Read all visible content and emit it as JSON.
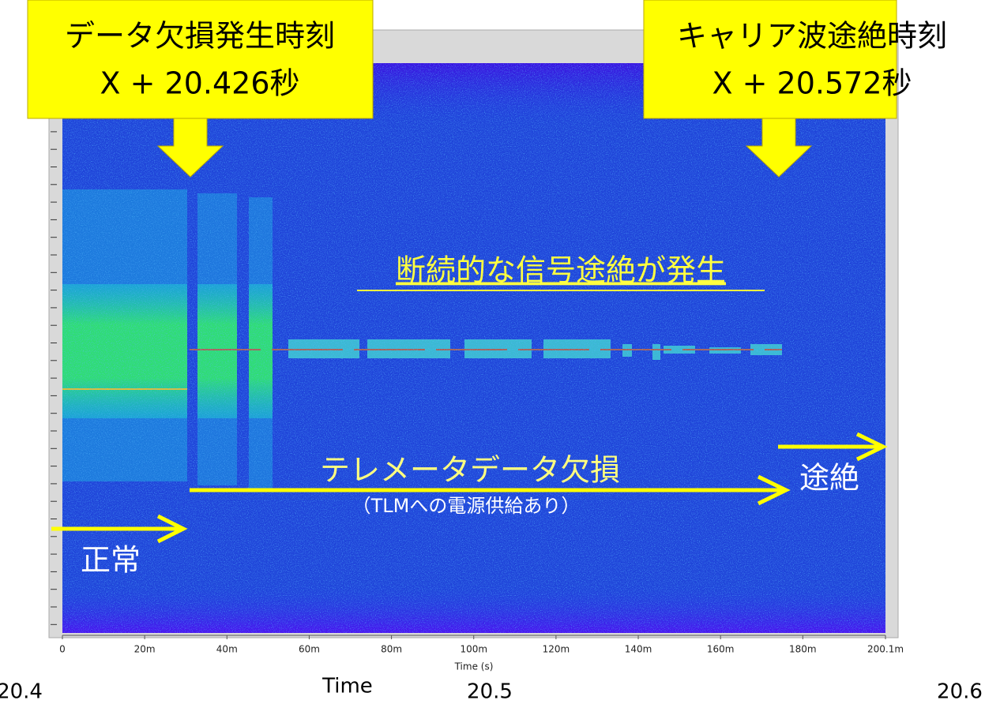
{
  "chart_data": {
    "type": "spectrogram",
    "xlabel": "Time (s)",
    "xlim": [
      0,
      0.2001
    ],
    "xticks": [
      {
        "value": 0,
        "label": "0"
      },
      {
        "value": 0.02,
        "label": "20m"
      },
      {
        "value": 0.04,
        "label": "40m"
      },
      {
        "value": 0.06,
        "label": "60m"
      },
      {
        "value": 0.08,
        "label": "80m"
      },
      {
        "value": 0.1,
        "label": "100m"
      },
      {
        "value": 0.12,
        "label": "120m"
      },
      {
        "value": 0.14,
        "label": "140m"
      },
      {
        "value": 0.16,
        "label": "160m"
      },
      {
        "value": 0.18,
        "label": "180m"
      },
      {
        "value": 0.2001,
        "label": "200.1m"
      }
    ],
    "x2label": "Time",
    "x2lim": [
      20.4,
      20.6
    ],
    "x2ticks": [
      20.4,
      20.5,
      20.6
    ],
    "annotations": {
      "loss_time_title": "データ欠損発生時刻",
      "loss_time_value": "X + 20.426秒",
      "carrier_time_title": "キャリア波途絶時刻",
      "carrier_time_value": "X + 20.572秒",
      "intermittent": "断続的な信号途絶が発生",
      "telemetry_loss": "テレメータデータ欠損",
      "telemetry_note": "（TLMへの電源供給あり）",
      "cutoff": "途絶",
      "normal": "正常"
    }
  }
}
